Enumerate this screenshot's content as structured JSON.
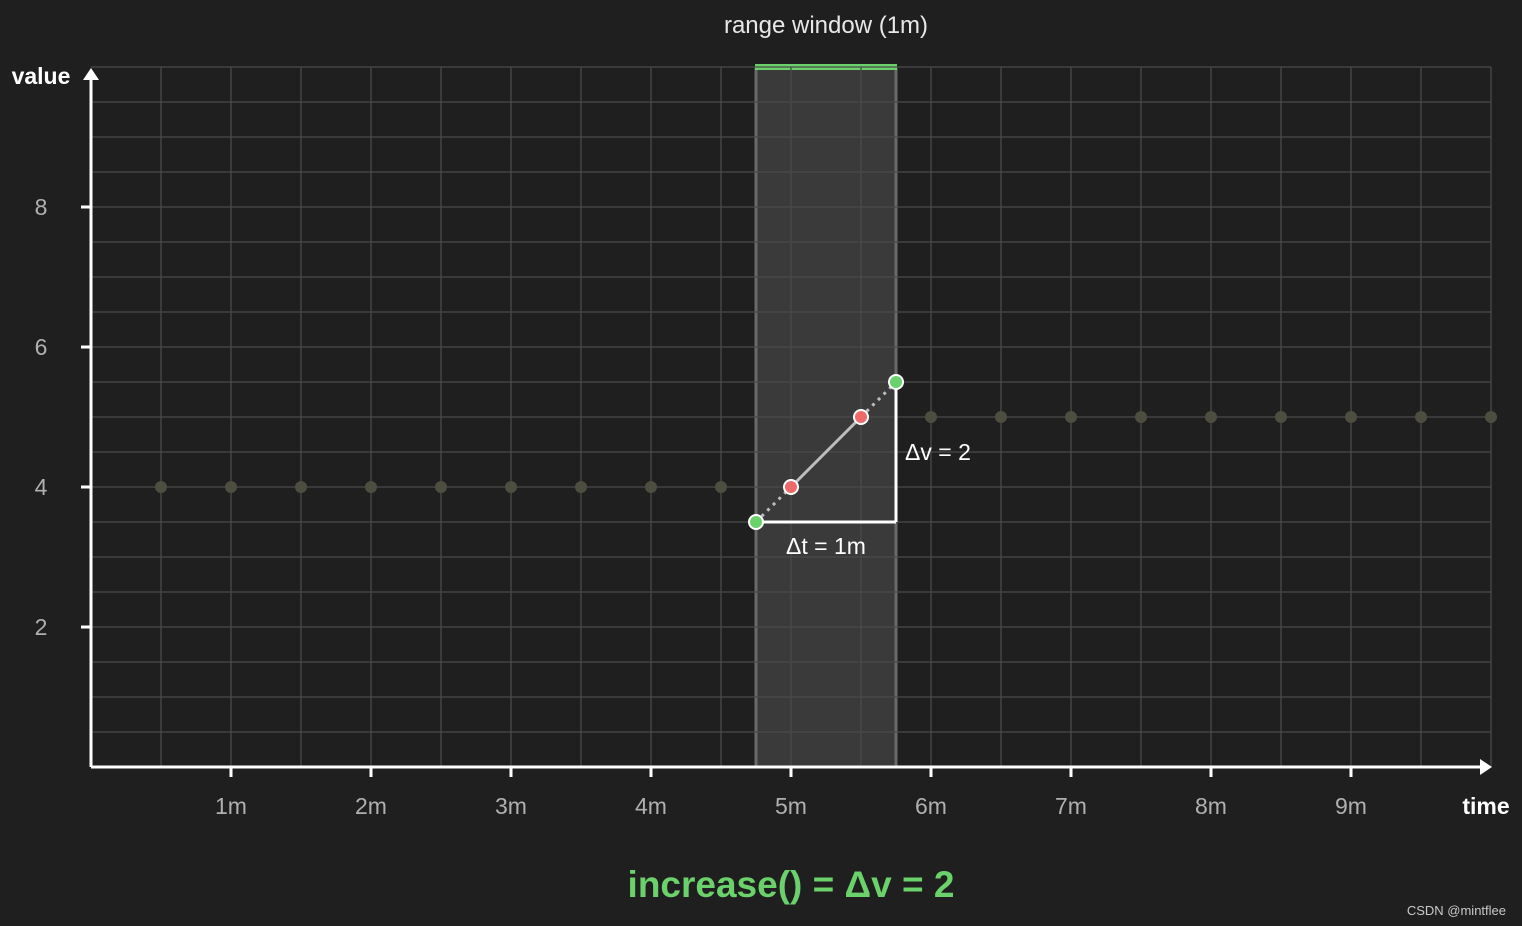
{
  "chart_data": {
    "type": "scatter",
    "title": "range window (1m)",
    "xlabel": "time",
    "ylabel": "value",
    "xlim": [
      0,
      10
    ],
    "ylim": [
      0,
      10
    ],
    "x_ticks": [
      {
        "value": 1,
        "label": "1m"
      },
      {
        "value": 2,
        "label": "2m"
      },
      {
        "value": 3,
        "label": "3m"
      },
      {
        "value": 4,
        "label": "4m"
      },
      {
        "value": 5,
        "label": "5m"
      },
      {
        "value": 6,
        "label": "6m"
      },
      {
        "value": 7,
        "label": "7m"
      },
      {
        "value": 8,
        "label": "8m"
      },
      {
        "value": 9,
        "label": "9m"
      }
    ],
    "y_ticks": [
      {
        "value": 2,
        "label": "2"
      },
      {
        "value": 4,
        "label": "4"
      },
      {
        "value": 6,
        "label": "6"
      },
      {
        "value": 8,
        "label": "8"
      }
    ],
    "grid": true,
    "grid_step": 0.5,
    "range_window": {
      "start": 4.75,
      "end": 5.75
    },
    "background_samples": [
      {
        "x": 0.5,
        "y": 4
      },
      {
        "x": 1.0,
        "y": 4
      },
      {
        "x": 1.5,
        "y": 4
      },
      {
        "x": 2.0,
        "y": 4
      },
      {
        "x": 2.5,
        "y": 4
      },
      {
        "x": 3.0,
        "y": 4
      },
      {
        "x": 3.5,
        "y": 4
      },
      {
        "x": 4.0,
        "y": 4
      },
      {
        "x": 4.5,
        "y": 4
      },
      {
        "x": 6.0,
        "y": 5
      },
      {
        "x": 6.5,
        "y": 5
      },
      {
        "x": 7.0,
        "y": 5
      },
      {
        "x": 7.5,
        "y": 5
      },
      {
        "x": 8.0,
        "y": 5
      },
      {
        "x": 8.5,
        "y": 5
      },
      {
        "x": 9.0,
        "y": 5
      },
      {
        "x": 9.5,
        "y": 5
      },
      {
        "x": 10.0,
        "y": 5
      }
    ],
    "window_samples": [
      {
        "x": 5.0,
        "y": 4
      },
      {
        "x": 5.5,
        "y": 5
      }
    ],
    "extrapolated_points": [
      {
        "x": 4.75,
        "y": 3.5
      },
      {
        "x": 5.75,
        "y": 5.5
      }
    ],
    "annotations": {
      "delta_v": "Δv = 2",
      "delta_t": "Δt = 1m"
    },
    "caption": "increase() = Δv = 2"
  },
  "colors": {
    "background": "#1f1f1f",
    "grid": "#4a4a4a",
    "axis": "#ffffff",
    "window_fill": "#3a3a3a",
    "window_edge": "#6a6a6a",
    "window_bar": "#6bd16b",
    "background_sample": "#4d4d40",
    "window_sample": "#ee6a6a",
    "extrapolated_point": "#6bd16b",
    "tick_label": "#b0b0b0"
  },
  "watermark": "CSDN @mintflee"
}
